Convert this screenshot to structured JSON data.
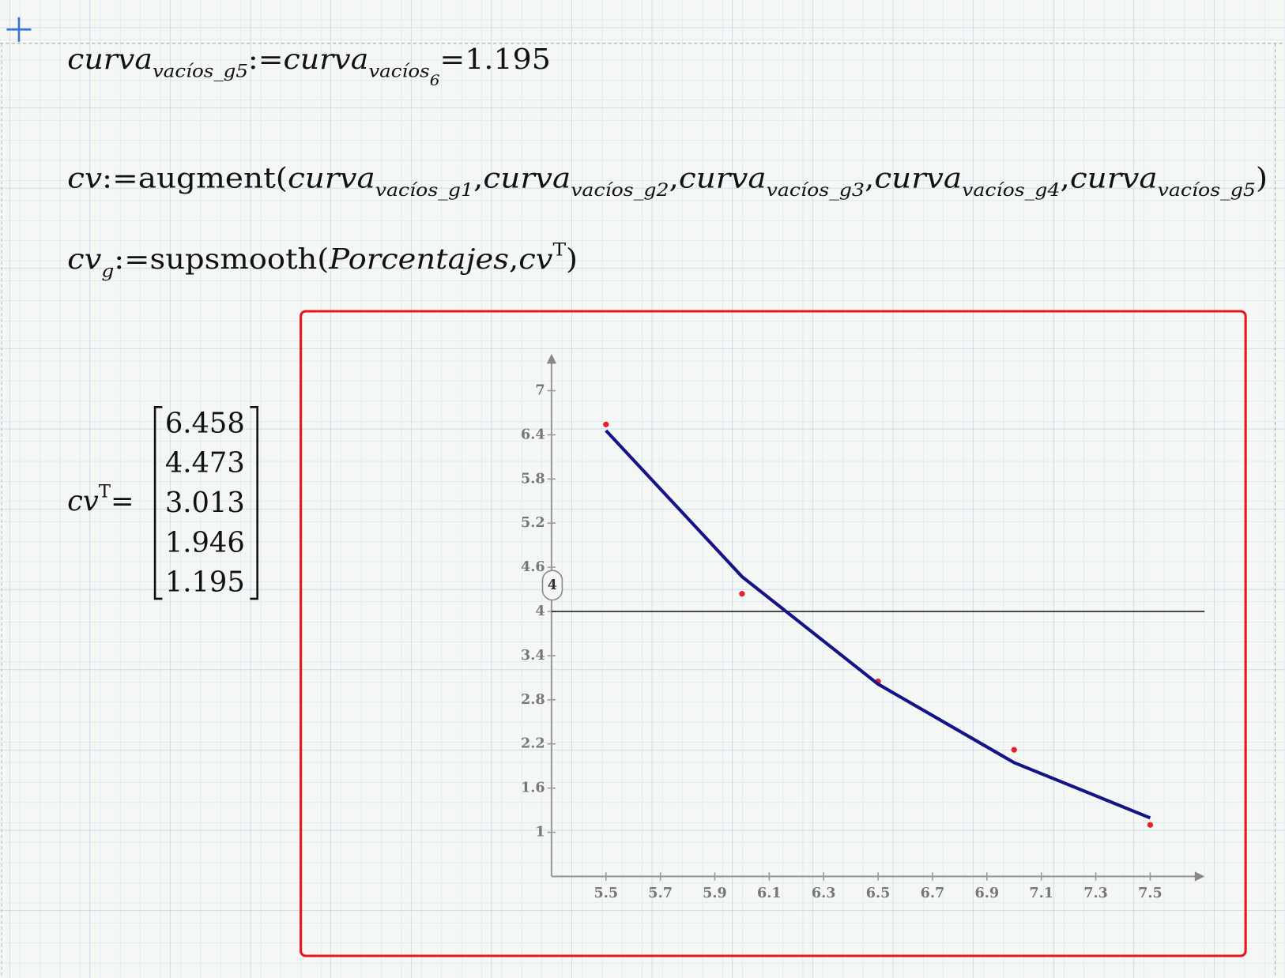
{
  "document": {
    "line1": [
      "curva",
      "vacíos_g5",
      ":=",
      "curva",
      "vacíos",
      "6",
      "=",
      "1.195"
    ],
    "line2": [
      "cv",
      ":=",
      "augment",
      "(",
      "curva",
      "vacíos_g1",
      ",",
      "curva",
      "vacíos_g2",
      ",",
      "curva",
      "vacíos_g3",
      ",",
      "curva",
      "vacíos_g4",
      ",",
      "curva",
      "vacíos_g5",
      ")"
    ],
    "line3": [
      "cv",
      "g",
      ":=",
      "supsmooth",
      "(",
      "Porcentajes",
      ",",
      "cv",
      "T",
      ")"
    ],
    "line4": [
      "cv",
      "T",
      "="
    ]
  },
  "chart_data": {
    "type": "line",
    "x": [
      5.5,
      6,
      6.5,
      7,
      7.5
    ],
    "series": [
      {
        "style": "points",
        "color": "#e8202a",
        "values": [
          6.54,
          4.24,
          3.05,
          2.12,
          1.1
        ]
      },
      {
        "style": "line",
        "color": "#141488",
        "values": [
          6.458,
          4.473,
          3.013,
          1.946,
          1.195
        ]
      }
    ],
    "marker": 4,
    "xlim": [
      5.3,
      7.7
    ],
    "ylim": [
      0.4,
      7.5
    ],
    "xticks": [
      5.5,
      5.7,
      5.9,
      6.1,
      6.3,
      6.5,
      6.7,
      6.9,
      7.1,
      7.3,
      7.5
    ],
    "yticks": [
      1,
      1.6,
      2.2,
      2.8,
      3.4,
      4,
      4.6,
      5.2,
      5.8,
      6.4,
      7
    ]
  }
}
